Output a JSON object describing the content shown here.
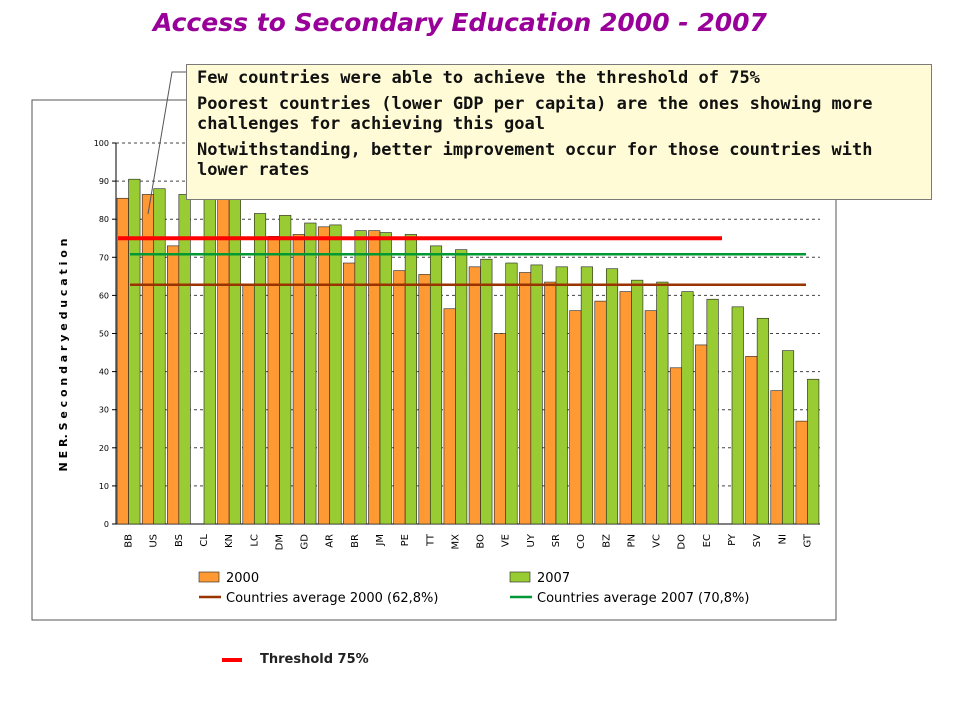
{
  "slide": {
    "title": "Access to Secondary Education 2000 - 2007",
    "notes": [
      "Few countries were able to achieve the threshold of 75%",
      "Poorest countries (lower GDP per capita) are the ones showing more challenges for achieving this goal",
      "Notwithstanding, better improvement occur for those countries with lower rates"
    ],
    "threshold_label": "Threshold 75%"
  },
  "colors": {
    "bar_2000": "#ff9933",
    "bar_2007": "#99cc33",
    "avg_2000": "#993300",
    "avg_2007": "#009933",
    "threshold": "#ff0000",
    "title": "#990099"
  },
  "chart_data": {
    "type": "bar",
    "ylabel": "N E R. S e c o n d a r y  e d u c a t i o n",
    "ylim": [
      0,
      100
    ],
    "yticks": [
      "0",
      "10",
      "20",
      "30",
      "40",
      "50",
      "60",
      "70",
      "80",
      "90",
      "100"
    ],
    "grid": "horizontal dashed",
    "legend_position": "bottom",
    "categories": [
      "BB",
      "US",
      "BS",
      "CL",
      "KN",
      "LC",
      "DM",
      "GD",
      "AR",
      "BR",
      "JM",
      "PE",
      "TT",
      "MX",
      "BO",
      "VE",
      "UY",
      "SR",
      "CO",
      "BZ",
      "PN",
      "VC",
      "DO",
      "EC",
      "PY",
      "SV",
      "NI",
      "GT"
    ],
    "series": [
      {
        "name": "2000",
        "values": [
          85.5,
          86.5,
          73,
          null,
          86,
          63,
          75.5,
          76,
          78,
          68.5,
          77,
          66.5,
          65.5,
          56.5,
          67.5,
          50,
          66,
          63.5,
          56,
          58.5,
          61,
          56,
          41,
          47,
          null,
          44,
          35,
          27
        ]
      },
      {
        "name": "2007",
        "values": [
          90.5,
          88,
          86.5,
          86,
          85.5,
          81.5,
          81,
          79,
          78.5,
          77,
          76.5,
          76,
          73,
          72,
          69.5,
          68.5,
          68,
          67.5,
          67.5,
          67,
          64,
          63.5,
          61,
          59,
          57,
          54,
          45.5,
          38
        ]
      }
    ],
    "reference_lines": [
      {
        "name": "Countries average 2000 (62,8%)",
        "value": 62.8
      },
      {
        "name": "Countries average 2007 (70,8%)",
        "value": 70.8
      },
      {
        "name": "Threshold 75%",
        "value": 75
      }
    ],
    "legend": [
      {
        "label": "2000",
        "kind": "box",
        "color": "#ff9933"
      },
      {
        "label": "2007",
        "kind": "box",
        "color": "#99cc33"
      },
      {
        "label": "Countries average 2000 (62,8%)",
        "kind": "line",
        "color": "#993300"
      },
      {
        "label": "Countries average 2007 (70,8%)",
        "kind": "line",
        "color": "#009933"
      }
    ]
  }
}
